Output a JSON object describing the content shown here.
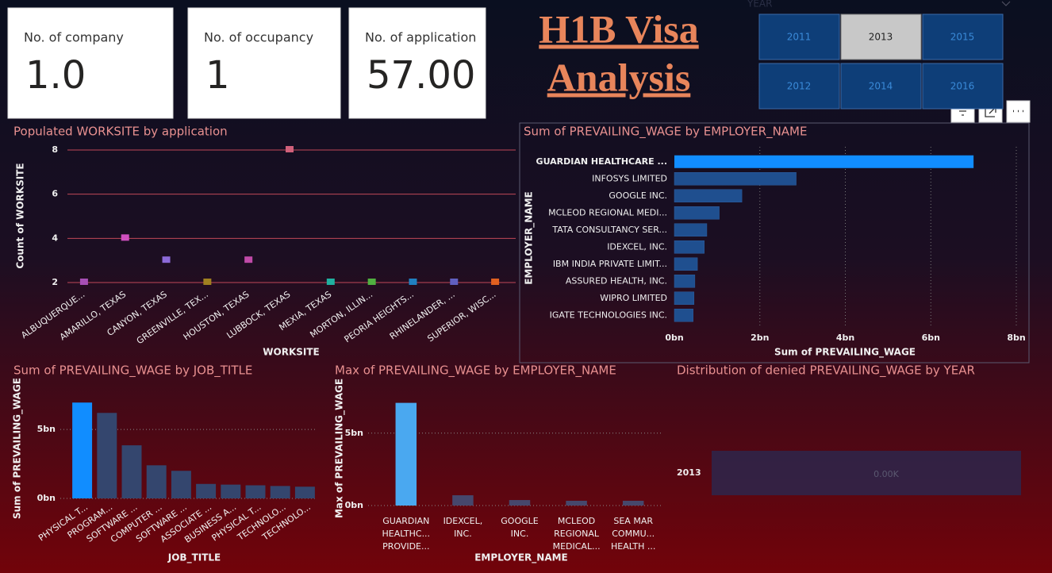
{
  "cards": [
    {
      "label": "No. of company",
      "value": "1.0"
    },
    {
      "label": "No. of occupancy",
      "value": "1"
    },
    {
      "label": "No. of application",
      "value": "57.00"
    }
  ],
  "title_lines": [
    "H1B Visa",
    "Analysis"
  ],
  "slicer": {
    "label": "YEAR",
    "options": [
      "2011",
      "2013",
      "2015",
      "2012",
      "2014",
      "2016"
    ],
    "selected": "2013"
  },
  "chart_data": [
    {
      "type": "dot",
      "title": "Populated WORKSITE by application",
      "x_label": "WORKSITE",
      "y_label": "Count of WORKSITE",
      "categories": [
        "ALBUQUERQUE...",
        "AMARILLO, TEXAS",
        "CANYON, TEXAS",
        "GREENVILLE, TEX...",
        "HOUSTON, TEXAS",
        "LUBBOCK, TEXAS",
        "MEXIA, TEXAS",
        "MORTON, ILLIN...",
        "PEORIA HEIGHTS...",
        "RHINELANDER, ...",
        "SUPERIOR, WISC..."
      ],
      "values": [
        2,
        4,
        3,
        2,
        3,
        8,
        2,
        2,
        2,
        2,
        2
      ],
      "colors": [
        "#a64fb4",
        "#d04fc0",
        "#8c6ad8",
        "#a08020",
        "#c04aa8",
        "#d0607a",
        "#20b0a0",
        "#50b040",
        "#2080c0",
        "#6060c0",
        "#e06020"
      ],
      "ylim": [
        2,
        8
      ],
      "yticks": [
        2,
        4,
        6,
        8
      ],
      "grid": true
    },
    {
      "type": "hbar",
      "title": "Sum of PREVAILING_WAGE by EMPLOYER_NAME",
      "x_label": "Sum of PREVAILING_WAGE",
      "y_label": "EMPLOYER_NAME",
      "categories": [
        "GUARDIAN HEALTHCARE ...",
        "INFOSYS LIMITED",
        "GOOGLE INC.",
        "MCLEOD REGIONAL MEDI...",
        "TATA CONSULTANCY SER...",
        "IDEXCEL, INC.",
        "IBM INDIA PRIVATE LIMIT...",
        "ASSURED HEALTH, INC.",
        "WIPRO LIMITED",
        "IGATE TECHNOLOGIES INC."
      ],
      "values": [
        7000000000,
        2850000000,
        1580000000,
        1050000000,
        760000000,
        700000000,
        540000000,
        480000000,
        460000000,
        440000000
      ],
      "colors": [
        "#118dff",
        "#1f4f8f",
        "#1f4f8f",
        "#1f4f8f",
        "#1f4f8f",
        "#1f4f8f",
        "#1f4f8f",
        "#1f4f8f",
        "#1f4f8f",
        "#1f4f8f"
      ],
      "xlim": [
        0,
        8000000000
      ],
      "xticks": [
        {
          "value": 0,
          "label": "0bn"
        },
        {
          "value": 2000000000,
          "label": "2bn"
        },
        {
          "value": 4000000000,
          "label": "4bn"
        },
        {
          "value": 6000000000,
          "label": "6bn"
        },
        {
          "value": 8000000000,
          "label": "8bn"
        }
      ],
      "grid": true
    },
    {
      "type": "bar",
      "title": "Sum of PREVAILING_WAGE by JOB_TITLE",
      "x_label": "JOB_TITLE",
      "y_label": "Sum of PREVAILING_WAGE",
      "categories": [
        "PHYSICAL T...",
        "PROGRAM...",
        "SOFTWARE ...",
        "COMPUTER ...",
        "SOFTWARE ...",
        "ASSOCIATE ...",
        "BUSINESS A...",
        "PHYSICAL T...",
        "TECHNOLO...",
        "TECHNOLO..."
      ],
      "values": [
        6950000000,
        6200000000,
        3850000000,
        2400000000,
        2000000000,
        1050000000,
        1000000000,
        950000000,
        900000000,
        850000000
      ],
      "colors": [
        "#118dff",
        "#34466e",
        "#34466e",
        "#34466e",
        "#34466e",
        "#34466e",
        "#34466e",
        "#34466e",
        "#34466e",
        "#34466e"
      ],
      "ylim": [
        0,
        8000000000
      ],
      "yticks": [
        {
          "value": 0,
          "label": "0bn"
        },
        {
          "value": 5000000000,
          "label": "5bn"
        }
      ],
      "grid": true
    },
    {
      "type": "bar",
      "title": "Max of PREVAILING_WAGE by EMPLOYER_NAME",
      "x_label": "EMPLOYER_NAME",
      "y_label": "Max of PREVAILING_WAGE",
      "categories": [
        "GUARDIAN\nHEALTHC...\nPROVIDE...",
        "IDEXCEL,\nINC.",
        "GOOGLE\nINC.",
        "MCLEOD\nREGIONAL\nMEDICAL...",
        "SEA MAR\nCOMMU...\nHEALTH ..."
      ],
      "values": [
        7090000000,
        710000000,
        380000000,
        330000000,
        330000000
      ],
      "colors": [
        "#4aa8f0",
        "#46476c",
        "#46476c",
        "#46476c",
        "#46476c"
      ],
      "ylim": [
        0,
        8000000000
      ],
      "yticks": [
        {
          "value": 0,
          "label": "0bn"
        },
        {
          "value": 5000000000,
          "label": "5bn"
        }
      ],
      "grid": true
    },
    {
      "type": "band",
      "title": "Distribution of denied PREVAILING_WAGE by YEAR",
      "categories": [
        "2013"
      ],
      "values": [
        0
      ],
      "value_labels": [
        "0.00K"
      ],
      "color": "#2a2850"
    }
  ]
}
